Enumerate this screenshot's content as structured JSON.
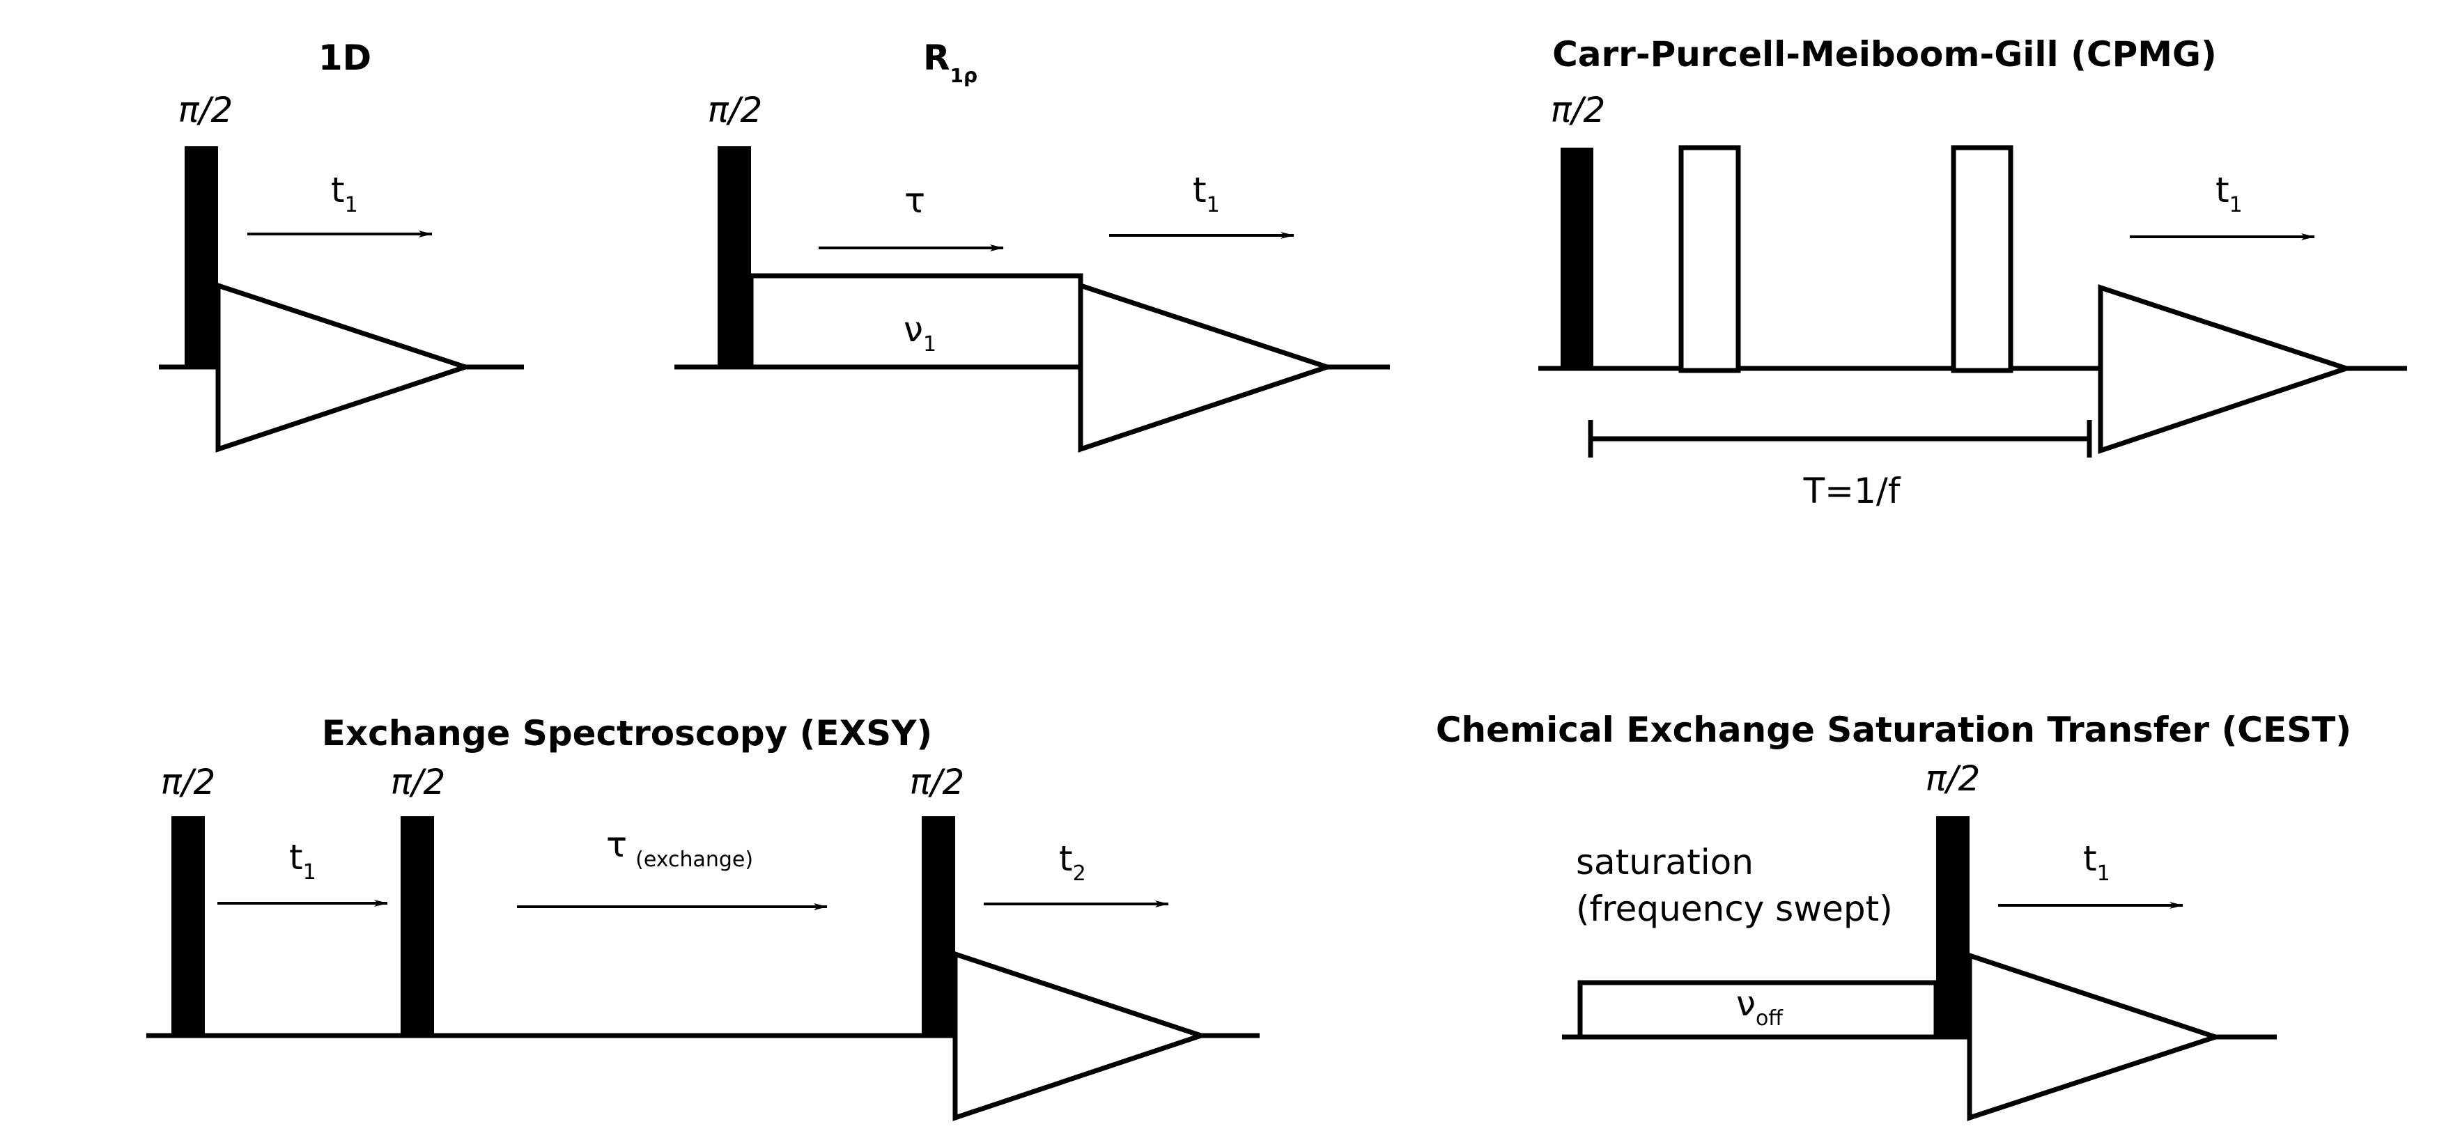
{
  "panels": {
    "oneD": {
      "title": "1D",
      "pulse": "π/2",
      "time": "t",
      "time_sub": "1"
    },
    "r1rho": {
      "title": "R",
      "title_sub": "1ρ",
      "pulse": "π/2",
      "tau": "τ",
      "nu": "ν",
      "nu_sub": "1",
      "time": "t",
      "time_sub": "1"
    },
    "cpmg": {
      "title": "Carr-Purcell-Meiboom-Gill (CPMG)",
      "pulse": "π/2",
      "time": "t",
      "time_sub": "1",
      "period": "T=1/f"
    },
    "exsy": {
      "title": "Exchange Spectroscopy (EXSY)",
      "pulse1": "π/2",
      "pulse2": "π/2",
      "pulse3": "π/2",
      "t1": "t",
      "t1_sub": "1",
      "tau": "τ",
      "tau_sub": "(exchange)",
      "t2": "t",
      "t2_sub": "2"
    },
    "cest": {
      "title": "Chemical Exchange Saturation Transfer (CEST)",
      "pulse": "π/2",
      "sat1": "saturation",
      "sat2": "(frequency swept)",
      "nu": "ν",
      "nu_sub": "off",
      "time": "t",
      "time_sub": "1"
    }
  }
}
